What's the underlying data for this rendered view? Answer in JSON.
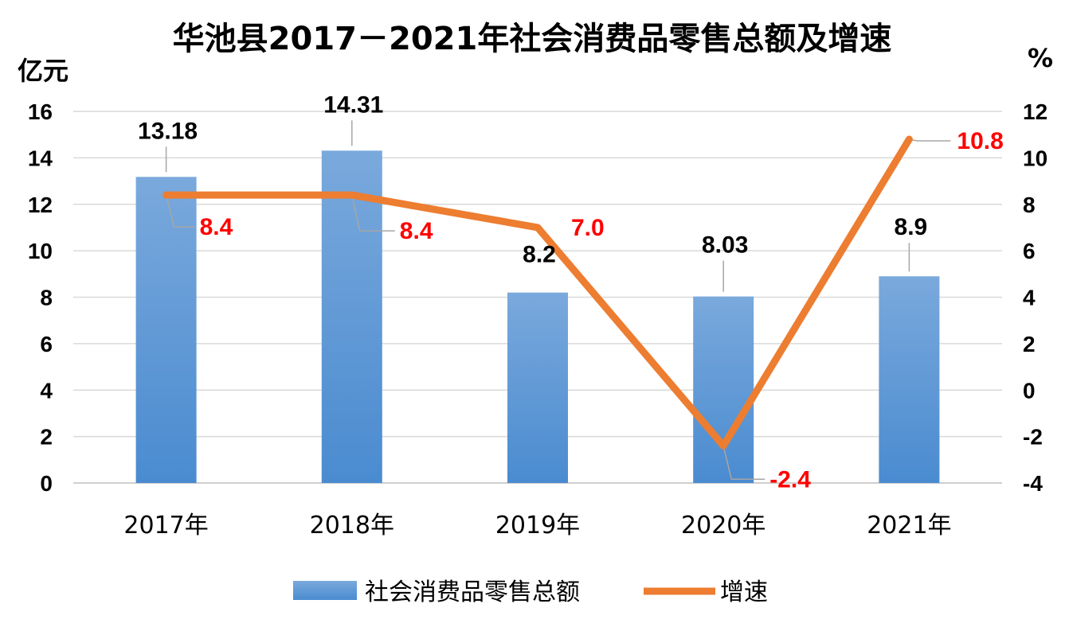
{
  "chart_data": {
    "type": "bar+line",
    "title": "华池县2017－2021年社会消费品零售总额及增速",
    "y_left_label": "亿元",
    "y_right_label": "%",
    "categories": [
      "2017年",
      "2018年",
      "2019年",
      "2020年",
      "2021年"
    ],
    "y_left_ticks": [
      "0",
      "2",
      "4",
      "6",
      "8",
      "10",
      "12",
      "14",
      "16"
    ],
    "y_right_ticks": [
      "-4",
      "-2",
      "0",
      "2",
      "4",
      "6",
      "8",
      "10",
      "12"
    ],
    "y_left_range": [
      0,
      16
    ],
    "y_right_range": [
      -4,
      12
    ],
    "series": [
      {
        "name": "社会消费品零售总额",
        "type": "bar",
        "axis": "left",
        "values": [
          13.18,
          14.31,
          8.2,
          8.03,
          8.9
        ],
        "labels": [
          "13.18",
          "14.31",
          "8.2",
          "8.03",
          "8.9"
        ],
        "color": "#5b9bd5"
      },
      {
        "name": "增速",
        "type": "line",
        "axis": "right",
        "values": [
          8.4,
          8.4,
          7.0,
          -2.4,
          10.8
        ],
        "labels": [
          "8.4",
          "8.4",
          "7.0",
          "-2.4",
          "10.8"
        ],
        "color": "#ed7d31",
        "label_color": "#ff0000"
      }
    ],
    "grid": true,
    "legend_position": "bottom"
  }
}
